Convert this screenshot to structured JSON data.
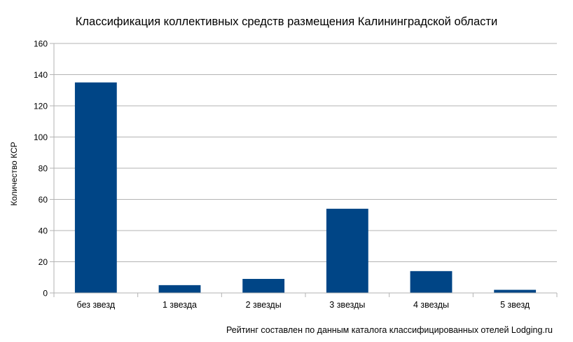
{
  "chart_data": {
    "type": "bar",
    "title": "Классификация коллективных средств размещения Калининградской области",
    "xlabel": "",
    "ylabel": "Количество КСР",
    "categories": [
      "без звезд",
      "1 звезда",
      "2 звезды",
      "3 звезды",
      "4 звезды",
      "5 звезд"
    ],
    "values": [
      135,
      5,
      9,
      54,
      14,
      2
    ],
    "ylim": [
      0,
      160
    ],
    "yticks": [
      0,
      20,
      40,
      60,
      80,
      100,
      120,
      140,
      160
    ],
    "grid": true,
    "legend": "none",
    "bar_color": "#004586",
    "grid_color": "#b3b3b3",
    "axis_color": "#b3b3b3",
    "footnote": "Рейтинг составлен по данным каталога классифицированных отелей Lodging.ru"
  }
}
